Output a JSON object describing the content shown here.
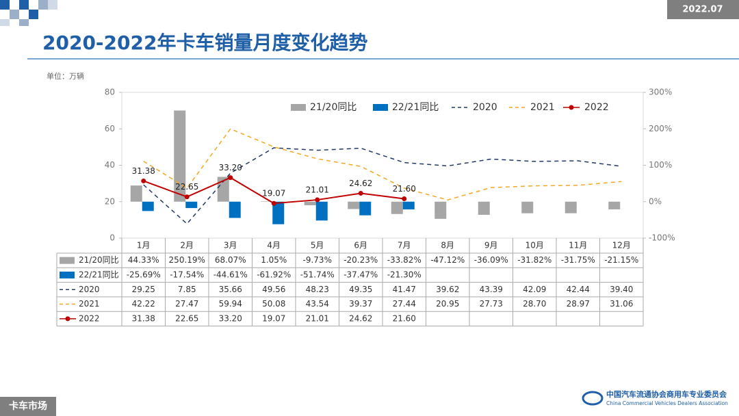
{
  "header": {
    "date": "2022.07"
  },
  "footer": {
    "section": "卡车市场",
    "org": "中国汽车流通协会商用车专业委员会",
    "org_en": "China Commercial Vehicles Dealers Association"
  },
  "chart_data": {
    "type": "combo",
    "title": "2020-2022年卡车销量月度变化趋势",
    "unit_label": "单位：万辆",
    "categories": [
      "1月",
      "2月",
      "3月",
      "4月",
      "5月",
      "6月",
      "7月",
      "8月",
      "9月",
      "10月",
      "11月",
      "12月"
    ],
    "ylim": [
      0,
      80
    ],
    "yticks": [
      0,
      20,
      40,
      60,
      80
    ],
    "y2lim": [
      -100,
      300
    ],
    "y2ticks": [
      {
        "value": -100,
        "label": "-100%"
      },
      {
        "value": 0,
        "label": "0%"
      },
      {
        "value": 100,
        "label": "100%"
      },
      {
        "value": 200,
        "label": "200%"
      },
      {
        "value": 300,
        "label": "300%"
      }
    ],
    "legend": "top",
    "series": [
      {
        "name": "21/20同比",
        "type": "bar",
        "axis": "y2",
        "color": "#a6a6a6",
        "values": [
          44.33,
          250.19,
          68.07,
          1.05,
          -9.73,
          -20.23,
          -33.82,
          -47.12,
          -36.09,
          -31.82,
          -31.75,
          -21.15
        ],
        "value_labels": [
          "44.33%",
          "250.19%",
          "68.07%",
          "1.05%",
          "-9.73%",
          "-20.23%",
          "-33.82%",
          "-47.12%",
          "-36.09%",
          "-31.82%",
          "-31.75%",
          "-21.15%"
        ]
      },
      {
        "name": "22/21同比",
        "type": "bar",
        "axis": "y2",
        "color": "#0070c0",
        "values": [
          -25.69,
          -17.54,
          -44.61,
          -61.92,
          -51.74,
          -37.47,
          -21.3,
          null,
          null,
          null,
          null,
          null
        ],
        "value_labels": [
          "-25.69%",
          "-17.54%",
          "-44.61%",
          "-61.92%",
          "-51.74%",
          "-37.47%",
          "-21.30%",
          null,
          null,
          null,
          null,
          null
        ]
      },
      {
        "name": "2020",
        "type": "line",
        "dashed": true,
        "color": "#1f3864",
        "values": [
          29.25,
          7.85,
          35.66,
          49.56,
          48.23,
          49.35,
          41.47,
          39.62,
          43.39,
          42.09,
          42.44,
          39.4
        ],
        "value_labels": [
          "29.25",
          "7.85",
          "35.66",
          "49.56",
          "48.23",
          "49.35",
          "41.47",
          "39.62",
          "43.39",
          "42.09",
          "42.44",
          "39.40"
        ]
      },
      {
        "name": "2021",
        "type": "line",
        "dashed": true,
        "color": "#f5a623",
        "values": [
          42.22,
          27.47,
          59.94,
          50.08,
          43.54,
          39.37,
          27.44,
          20.95,
          27.73,
          28.7,
          28.97,
          31.06
        ],
        "value_labels": [
          "42.22",
          "27.47",
          "59.94",
          "50.08",
          "43.54",
          "39.37",
          "27.44",
          "20.95",
          "27.73",
          "28.70",
          "28.97",
          "31.06"
        ]
      },
      {
        "name": "2022",
        "type": "line",
        "dashed": false,
        "markers": true,
        "show_labels": true,
        "color": "#c00000",
        "values": [
          31.38,
          22.65,
          33.2,
          19.07,
          21.01,
          24.62,
          21.6,
          null,
          null,
          null,
          null,
          null
        ],
        "value_labels": [
          "31.38",
          "22.65",
          "33.20",
          "19.07",
          "21.01",
          "24.62",
          "21.60",
          null,
          null,
          null,
          null,
          null
        ]
      }
    ]
  }
}
